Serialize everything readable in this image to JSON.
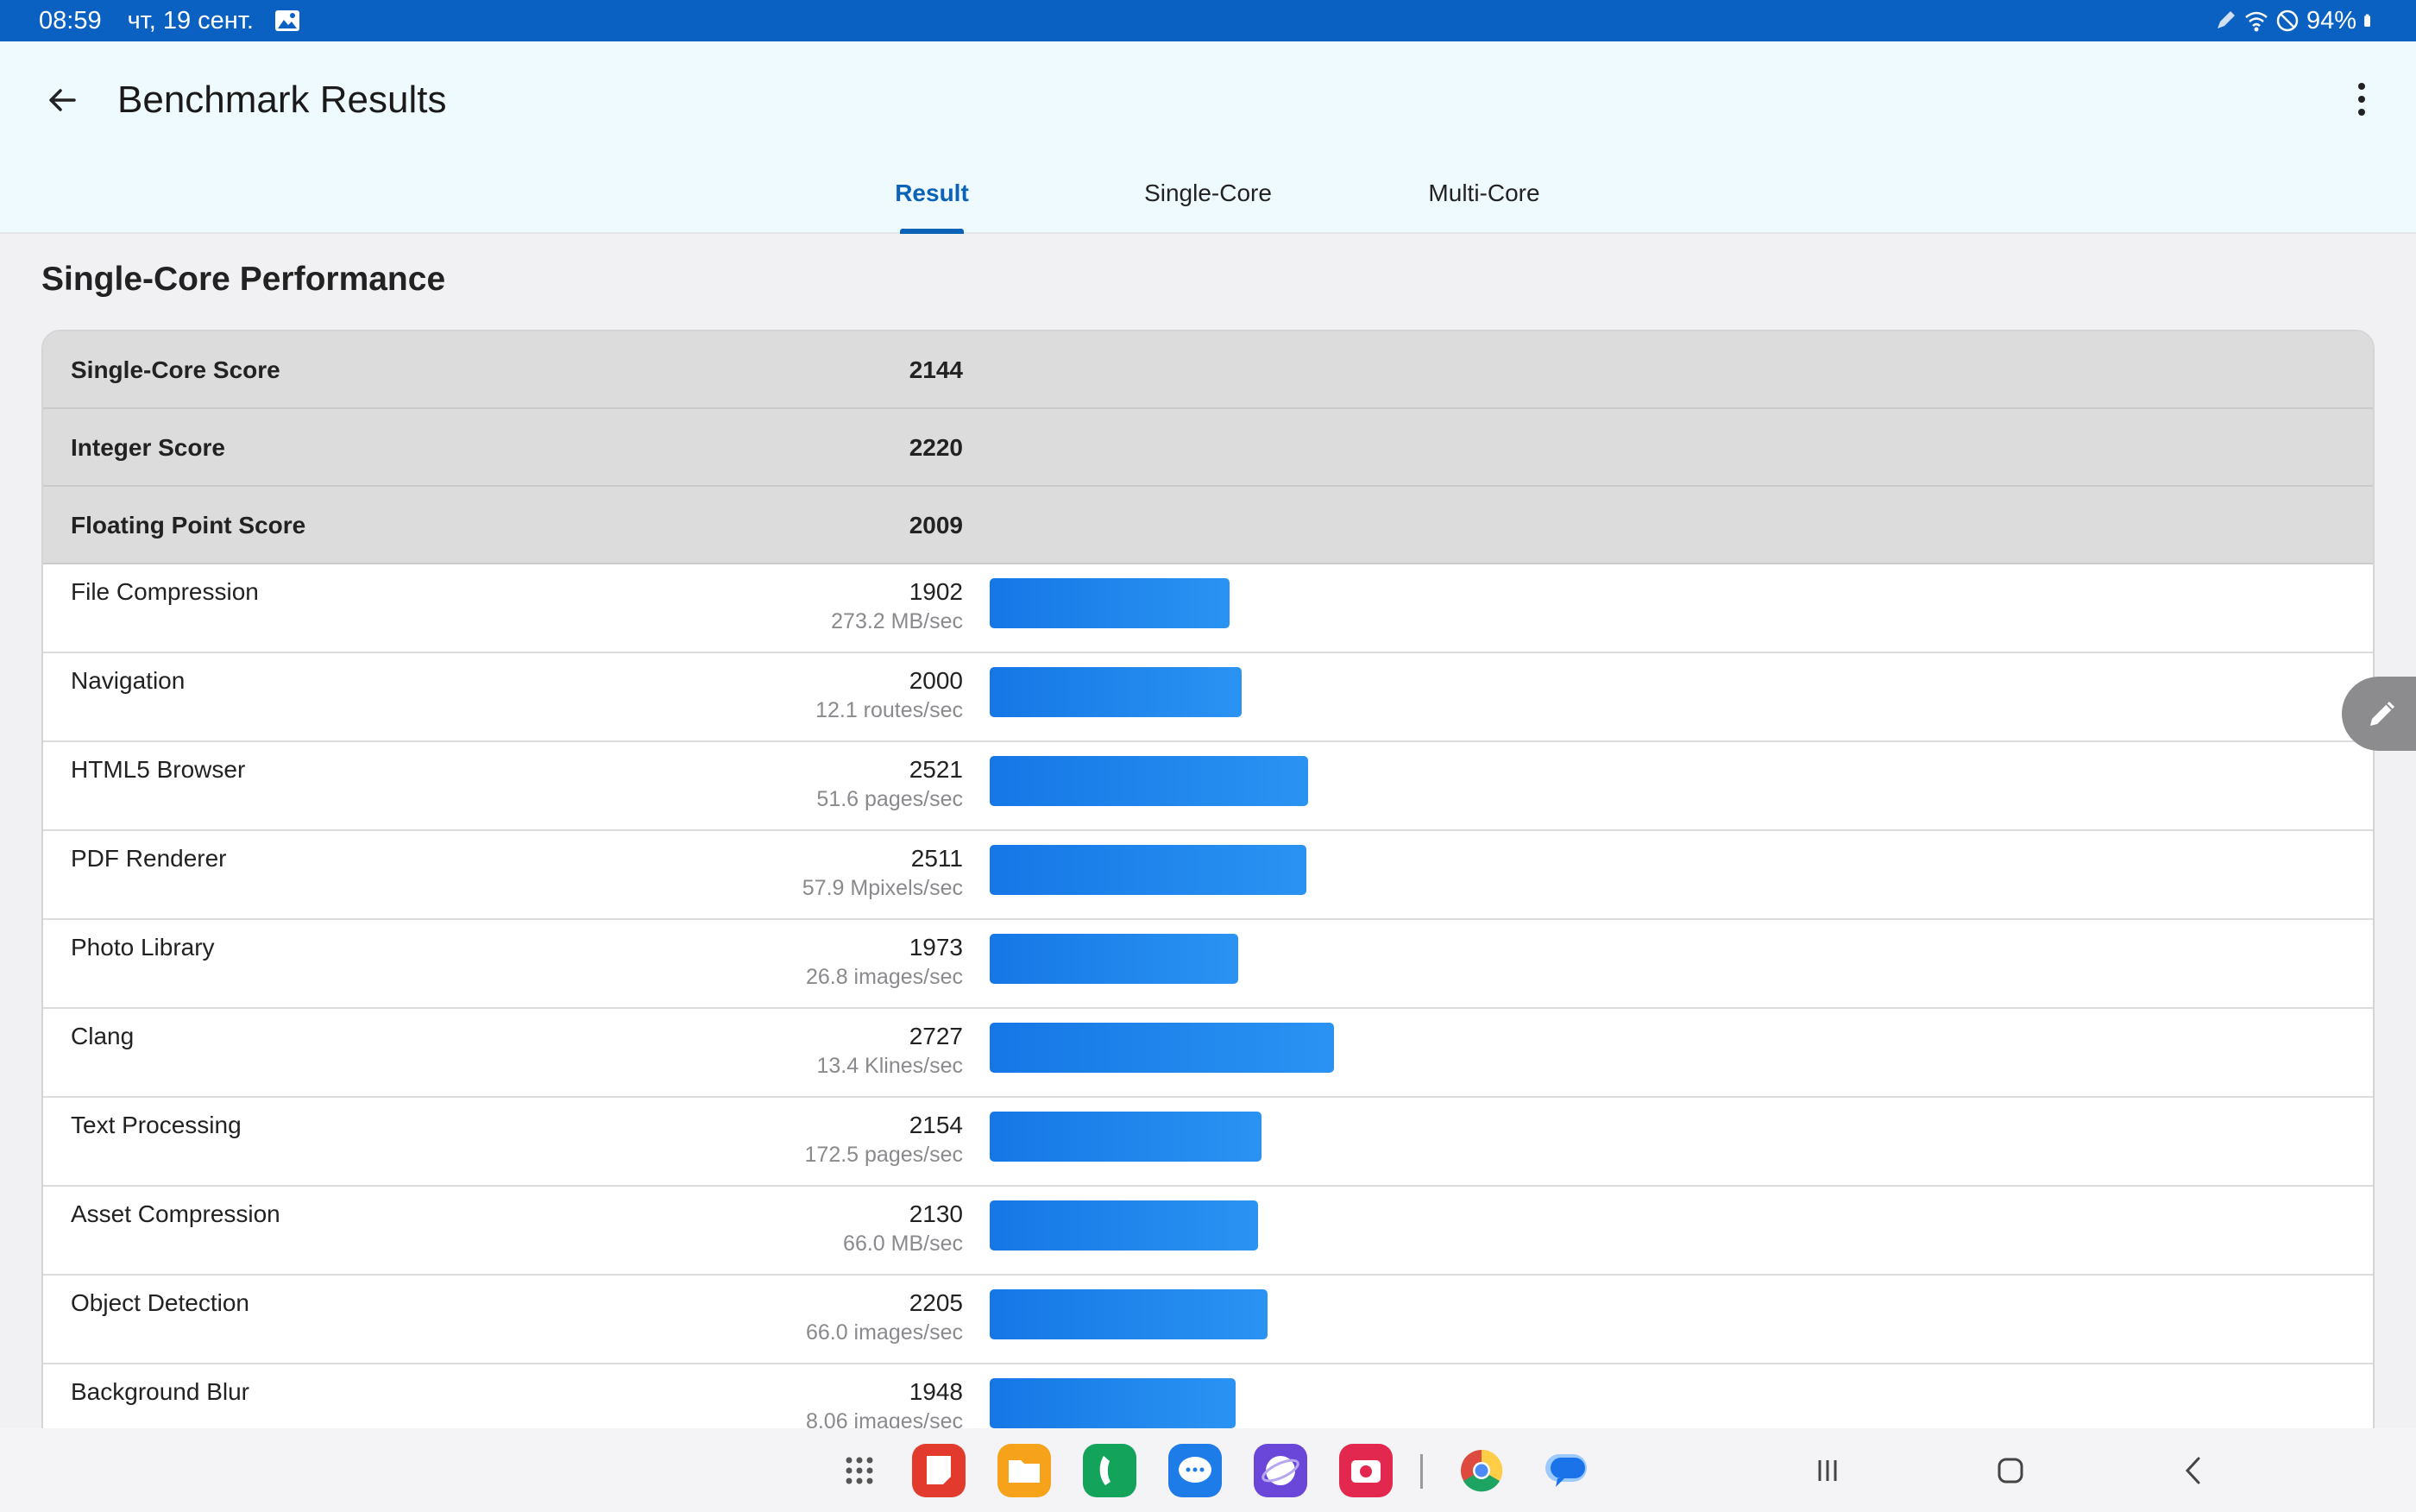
{
  "status_bar": {
    "time": "08:59",
    "date": "чт, 19 сент.",
    "battery": "94%"
  },
  "app_bar": {
    "title": "Benchmark Results",
    "tabs": [
      {
        "label": "Result",
        "active": true
      },
      {
        "label": "Single-Core",
        "active": false
      },
      {
        "label": "Multi-Core",
        "active": false
      }
    ]
  },
  "section": {
    "title": "Single-Core Performance"
  },
  "summary": [
    {
      "label": "Single-Core Score",
      "value": "2144"
    },
    {
      "label": "Integer Score",
      "value": "2220"
    },
    {
      "label": "Floating Point Score",
      "value": "2009"
    }
  ],
  "tests": [
    {
      "label": "File Compression",
      "score": "1902",
      "rate": "273.2 MB/sec"
    },
    {
      "label": "Navigation",
      "score": "2000",
      "rate": "12.1 routes/sec"
    },
    {
      "label": "HTML5 Browser",
      "score": "2521",
      "rate": "51.6 pages/sec"
    },
    {
      "label": "PDF Renderer",
      "score": "2511",
      "rate": "57.9 Mpixels/sec"
    },
    {
      "label": "Photo Library",
      "score": "1973",
      "rate": "26.8 images/sec"
    },
    {
      "label": "Clang",
      "score": "2727",
      "rate": "13.4 Klines/sec"
    },
    {
      "label": "Text Processing",
      "score": "2154",
      "rate": "172.5 pages/sec"
    },
    {
      "label": "Asset Compression",
      "score": "2130",
      "rate": "66.0 MB/sec"
    },
    {
      "label": "Object Detection",
      "score": "2205",
      "rate": "66.0 images/sec"
    },
    {
      "label": "Background Blur",
      "score": "1948",
      "rate": "8.06 images/sec"
    }
  ],
  "colors": {
    "accent": "#0b63b8",
    "status_bar": "#0a61c1",
    "bar": "#1a7fe9"
  },
  "icons": {
    "back": "arrow-left-icon",
    "more": "more-vert-icon",
    "edit": "pencil-icon"
  },
  "dock": [
    "apps-grid-icon",
    "notes-app-icon",
    "files-app-icon",
    "phone-app-icon",
    "messages-app-icon",
    "internet-app-icon",
    "camera-app-icon",
    "chrome-app-icon",
    "google-messages-app-icon"
  ]
}
